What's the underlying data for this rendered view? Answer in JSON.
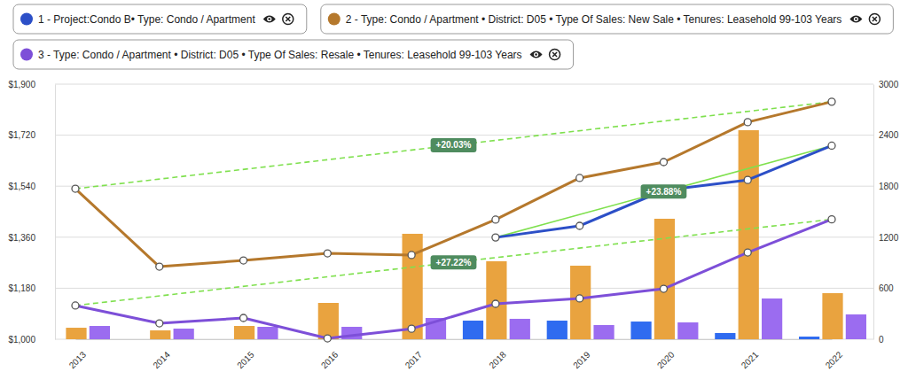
{
  "chart_data": {
    "type": "line",
    "categories": [
      "2013",
      "2014",
      "2015",
      "2016",
      "2017",
      "2018",
      "2019",
      "2020",
      "2021",
      "2022"
    ],
    "ylim": [
      1000,
      1900
    ],
    "yticks": [
      {
        "value": 1000,
        "label": "$1,000"
      },
      {
        "value": 1180,
        "label": "$1,180"
      },
      {
        "value": 1360,
        "label": "$1,360"
      },
      {
        "value": 1540,
        "label": "$1,540"
      },
      {
        "value": 1720,
        "label": "$1,720"
      },
      {
        "value": 1900,
        "label": "$1,900"
      }
    ],
    "y2lim": [
      0,
      3000
    ],
    "y2ticks": [
      0,
      600,
      1200,
      1800,
      2400,
      3000
    ],
    "grid": true,
    "legend": "top",
    "series": [
      {
        "name": "1 - Project:Condo B• Type: Condo / Apartment",
        "type": "line",
        "color": "#2c4fc7",
        "marker": "circle",
        "values": [
          null,
          null,
          null,
          null,
          null,
          1359,
          1400,
          1525,
          1562,
          1683
        ],
        "annotation": "+23.88%"
      },
      {
        "name": "2 - Type: Condo / Apartment • District: D05 • Type Of Sales: New Sale • Tenures: Leasehold 99-103 Years",
        "type": "line",
        "color": "#b5782c",
        "marker": "circle",
        "values": [
          1531,
          1256,
          1278,
          1303,
          1297,
          1422,
          1569,
          1625,
          1766,
          1838
        ],
        "annotation": "+20.03%"
      },
      {
        "name": "3 - Type: Condo / Apartment • District: D05 • Type Of Sales: Resale • Tenures: Leasehold 99-103 Years",
        "type": "line",
        "color": "#7d4fd8",
        "marker": "circle",
        "values": [
          1119,
          1056,
          1075,
          1003,
          1037,
          1125,
          1144,
          1178,
          1306,
          1423
        ],
        "annotation": "+27.22%"
      },
      {
        "type": "bar",
        "axis": "y2",
        "color": "#2f6bf0",
        "values": [
          null,
          null,
          null,
          null,
          null,
          219,
          219,
          208,
          73,
          31
        ]
      },
      {
        "type": "bar",
        "axis": "y2",
        "color": "#e9a33f",
        "values": [
          135,
          104,
          156,
          427,
          1240,
          917,
          865,
          1417,
          2458,
          542
        ]
      },
      {
        "type": "bar",
        "axis": "y2",
        "color": "#9b6cf0",
        "values": [
          156,
          125,
          146,
          146,
          250,
          240,
          167,
          198,
          479,
          292
        ]
      }
    ]
  }
}
